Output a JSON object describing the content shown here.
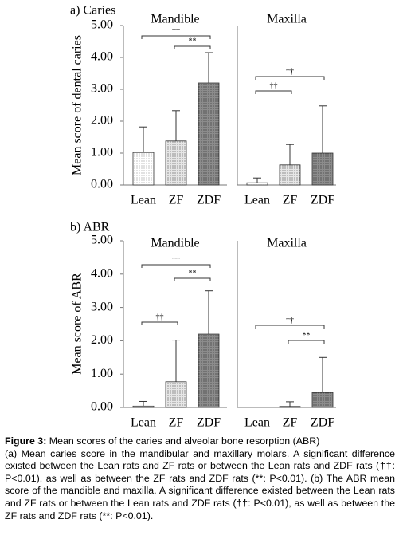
{
  "chart_data": [
    {
      "type": "bar",
      "panel_label": "a) Caries",
      "title": "Mandible",
      "ylabel": "Mean score of dental caries",
      "categories": [
        "Lean",
        "ZF",
        "ZDF"
      ],
      "values": [
        1.02,
        1.38,
        3.2
      ],
      "errors": [
        0.8,
        0.95,
        0.95
      ],
      "colors": [
        "#ffffff",
        "#e6e6e6",
        "#8c8c8c"
      ],
      "ylim": [
        0,
        5
      ],
      "yticks": [
        {
          "value": 0,
          "label": "0.00"
        },
        {
          "value": 1,
          "label": "1.00"
        },
        {
          "value": 2,
          "label": "2.00"
        },
        {
          "value": 3,
          "label": "3.00"
        },
        {
          "value": 4,
          "label": "4.00"
        },
        {
          "value": 5,
          "label": "5.00"
        }
      ],
      "annotations": [
        "††",
        "**"
      ]
    },
    {
      "type": "bar",
      "title": "Maxilla",
      "categories": [
        "Lean",
        "ZF",
        "ZDF"
      ],
      "values": [
        0.07,
        0.63,
        1.0
      ],
      "errors": [
        0.15,
        0.64,
        1.48
      ],
      "colors": [
        "#ffffff",
        "#e6e6e6",
        "#8c8c8c"
      ],
      "ylim": [
        0,
        5
      ],
      "annotations": [
        "††",
        "††"
      ]
    },
    {
      "type": "bar",
      "panel_label": "b) ABR",
      "title": "Mandible",
      "ylabel": "Mean score of ABR",
      "categories": [
        "Lean",
        "ZF",
        "ZDF"
      ],
      "values": [
        0.04,
        0.77,
        2.2
      ],
      "errors": [
        0.14,
        1.25,
        1.3
      ],
      "colors": [
        "#ffffff",
        "#e6e6e6",
        "#8c8c8c"
      ],
      "ylim": [
        0,
        5
      ],
      "yticks": [
        {
          "value": 0,
          "label": "0.00"
        },
        {
          "value": 1,
          "label": "1.00"
        },
        {
          "value": 2,
          "label": "2.00"
        },
        {
          "value": 3,
          "label": "3.00"
        },
        {
          "value": 4,
          "label": "4.00"
        },
        {
          "value": 5,
          "label": "5.00"
        }
      ],
      "annotations": [
        "††",
        "**",
        "††"
      ]
    },
    {
      "type": "bar",
      "title": "Maxilla",
      "categories": [
        "Lean",
        "ZF",
        "ZDF"
      ],
      "values": [
        0,
        0.03,
        0.45
      ],
      "errors": [
        0,
        0.14,
        1.05
      ],
      "colors": [
        "#ffffff",
        "#e6e6e6",
        "#8c8c8c"
      ],
      "ylim": [
        0,
        5
      ],
      "annotations": [
        "††",
        "**"
      ]
    }
  ],
  "caption": {
    "label": "Figure 3:",
    "title": "Mean scores of the caries and alveolar bone resorption (ABR)",
    "text": "(a) Mean caries score in the mandibular and maxillary molars. A significant difference existed between the Lean rats and ZF rats or between the Lean rats and ZDF rats (††: P<0.01), as well as between the ZF rats and ZDF rats (**: P<0.01). (b) The ABR mean score of the mandible and maxilla. A significant difference existed between the Lean rats and ZF rats or between the Lean rats and ZDF rats (††: P<0.01), as well as between the ZF rats and ZDF rats (**: P<0.01)."
  }
}
